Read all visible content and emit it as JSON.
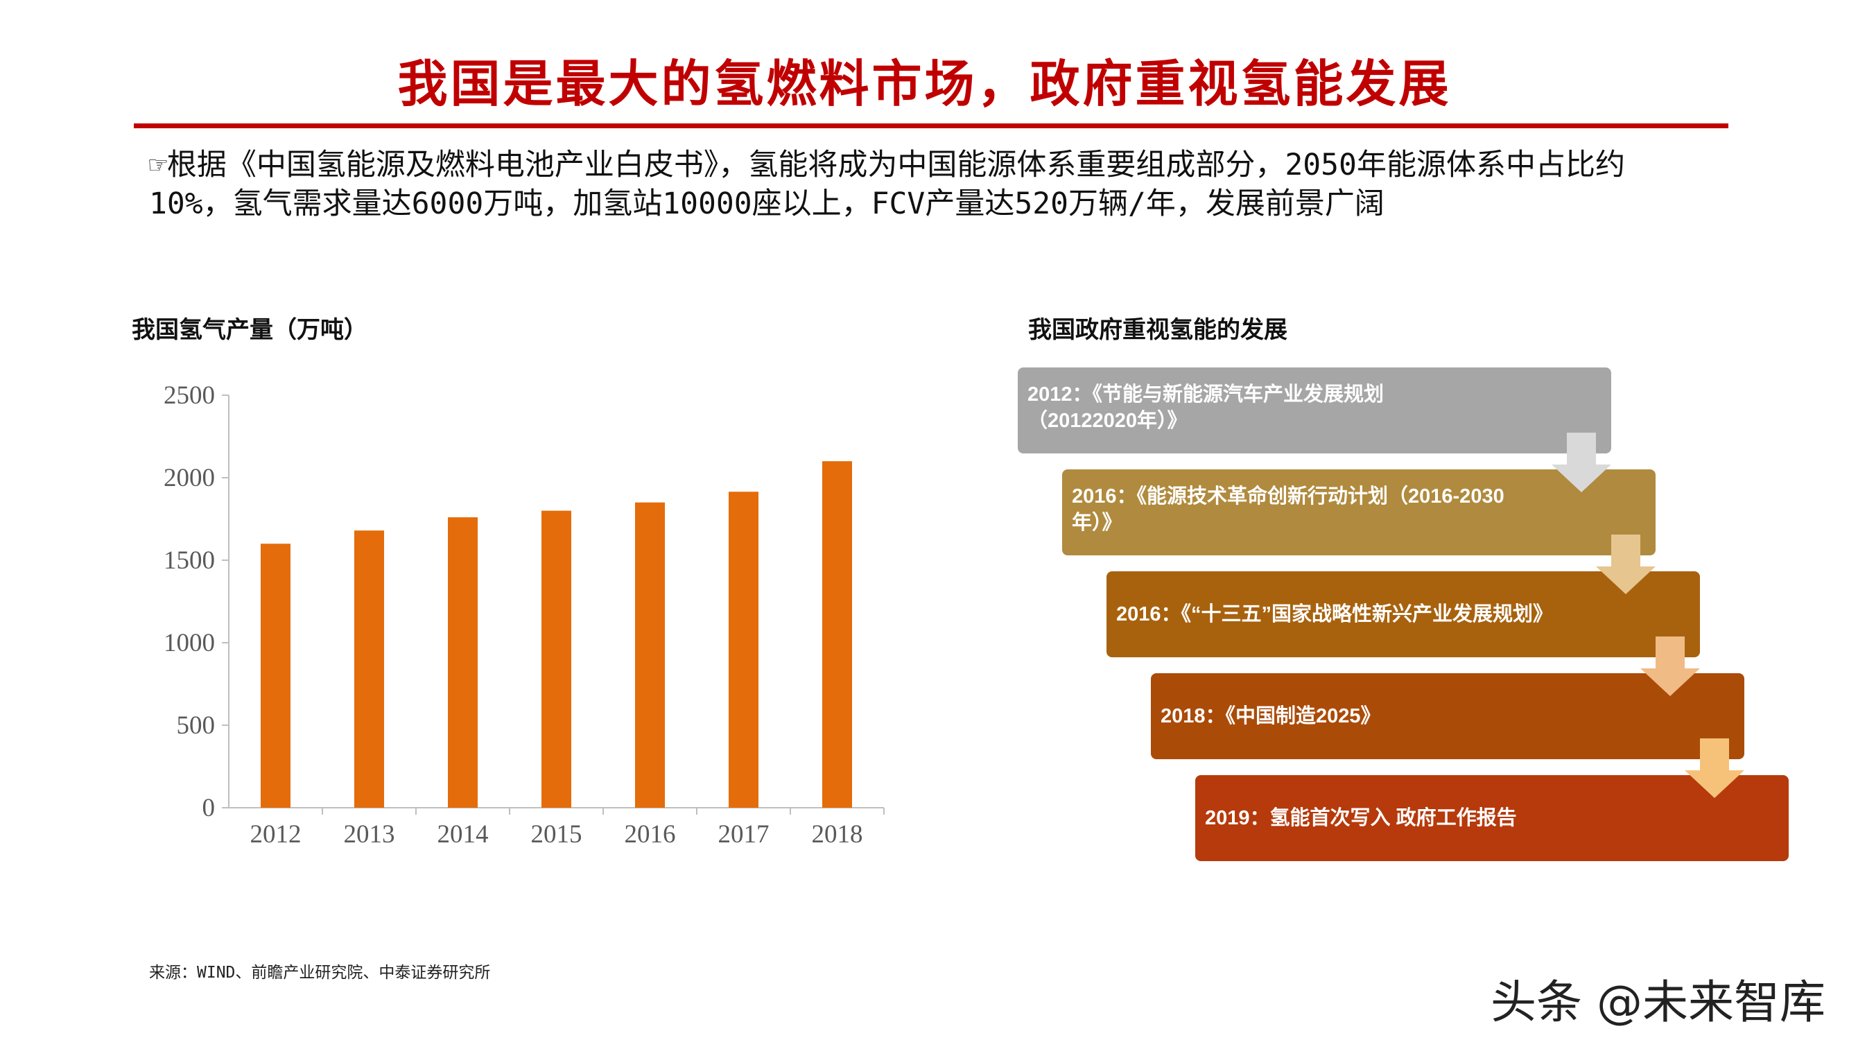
{
  "title": "我国是最大的氢燃料市场，政府重视氢能发展",
  "intro": "☞根据《中国氢能源及燃料电池产业白皮书》，氢能将成为中国能源体系重要组成部分，2050年能源体系中占比约10%，氢气需求量达6000万吨，加氢站10000座以上，FCV产量达520万辆/年，发展前景广阔",
  "chart_title": "我国氢气产量（万吨）",
  "timeline_title": "我国政府重视氢能的发展",
  "chart_data": {
    "type": "bar",
    "title": "我国氢气产量（万吨）",
    "categories": [
      "2012",
      "2013",
      "2014",
      "2015",
      "2016",
      "2017",
      "2018"
    ],
    "values": [
      1600,
      1680,
      1760,
      1800,
      1850,
      1915,
      2100
    ],
    "yticks": [
      "0",
      "500",
      "1000",
      "1500",
      "2000",
      "2500"
    ],
    "ylim": [
      0,
      2500
    ],
    "xlabel": "",
    "ylabel": "",
    "grid": false,
    "bar_color": "#e46c0a"
  },
  "timeline": [
    {
      "line1": "2012：《节能与新能源汽车产业发展规划",
      "line2": "（20122020年）》",
      "color": "#a6a6a6"
    },
    {
      "line1": "2016：《能源技术革命创新行动计划（2016-2030",
      "line2": "年）》",
      "color": "#b08a3e"
    },
    {
      "line1": "2016：《“十三五”国家战略性新兴产业发展规划》",
      "line2": "",
      "color": "#a8620e"
    },
    {
      "line1": "2018：《中国制造2025》",
      "line2": "",
      "color": "#ab4b08"
    },
    {
      "line1": "2019：氢能首次写入 政府工作报告",
      "line2": "",
      "color": "#b63a0c"
    }
  ],
  "arrow_colors": [
    "#d9d9d9",
    "#e6c58f",
    "#f0bb85",
    "#f6c27a",
    "#f4b63f"
  ],
  "source": "来源：WIND、前瞻产业研究院、中泰证券研究所",
  "watermark": "头条 @未来智库"
}
